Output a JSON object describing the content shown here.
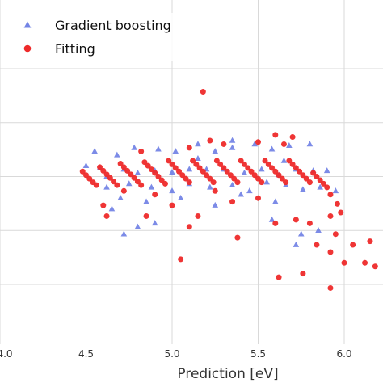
{
  "chart_data": {
    "type": "scatter",
    "xlabel": "Prediction [eV]",
    "ylabel": "",
    "title": "",
    "xlim": [
      4.0,
      6.2
    ],
    "ylim": [
      2.5,
      6.2
    ],
    "x_ticks": [
      4.0,
      4.5,
      5.0,
      5.5,
      6.0
    ],
    "x_tick_labels": [
      "4.0",
      "4.5",
      "5.0",
      "5.5",
      "6.0"
    ],
    "y_gridlines": [
      3.0,
      3.75,
      4.5,
      5.25,
      6.0
    ],
    "grid": true,
    "legend": {
      "placement": "top-left"
    },
    "series": [
      {
        "name": "Gradient boosting",
        "marker": "triangle",
        "color": "#5b6ee1",
        "points": [
          [
            4.5,
            4.65
          ],
          [
            4.58,
            4.62
          ],
          [
            4.62,
            4.5
          ],
          [
            4.72,
            4.6
          ],
          [
            4.8,
            4.55
          ],
          [
            4.9,
            4.58
          ],
          [
            5.0,
            4.56
          ],
          [
            5.1,
            4.6
          ],
          [
            5.2,
            4.6
          ],
          [
            5.3,
            4.6
          ],
          [
            5.42,
            4.55
          ],
          [
            5.52,
            4.6
          ],
          [
            5.62,
            4.52
          ],
          [
            5.72,
            4.6
          ],
          [
            5.82,
            4.58
          ],
          [
            5.9,
            4.58
          ],
          [
            4.55,
            4.85
          ],
          [
            4.68,
            4.8
          ],
          [
            4.78,
            4.9
          ],
          [
            4.92,
            4.88
          ],
          [
            5.02,
            4.85
          ],
          [
            5.15,
            4.95
          ],
          [
            5.25,
            4.85
          ],
          [
            5.35,
            4.9
          ],
          [
            5.48,
            4.95
          ],
          [
            5.58,
            4.88
          ],
          [
            5.68,
            4.93
          ],
          [
            5.8,
            4.95
          ],
          [
            4.62,
            4.35
          ],
          [
            4.75,
            4.4
          ],
          [
            4.88,
            4.35
          ],
          [
            5.0,
            4.3
          ],
          [
            5.1,
            4.4
          ],
          [
            5.22,
            4.35
          ],
          [
            5.35,
            4.38
          ],
          [
            5.45,
            4.3
          ],
          [
            5.55,
            4.42
          ],
          [
            5.66,
            4.38
          ],
          [
            5.76,
            4.32
          ],
          [
            5.86,
            4.35
          ],
          [
            5.95,
            4.3
          ],
          [
            4.7,
            4.2
          ],
          [
            4.85,
            4.15
          ],
          [
            5.05,
            4.2
          ],
          [
            5.25,
            4.1
          ],
          [
            5.4,
            4.25
          ],
          [
            5.6,
            4.15
          ],
          [
            4.8,
            3.8
          ],
          [
            4.65,
            4.05
          ],
          [
            4.9,
            3.85
          ],
          [
            5.58,
            3.9
          ],
          [
            5.75,
            3.7
          ],
          [
            5.85,
            3.75
          ],
          [
            5.72,
            3.55
          ],
          [
            4.72,
            3.7
          ],
          [
            5.35,
            5.0
          ],
          [
            5.15,
            4.75
          ],
          [
            5.65,
            4.72
          ]
        ]
      },
      {
        "name": "Fitting",
        "marker": "circle",
        "color": "#ee2a2a",
        "points": [
          [
            4.48,
            4.57
          ],
          [
            4.5,
            4.52
          ],
          [
            4.52,
            4.47
          ],
          [
            4.54,
            4.42
          ],
          [
            4.56,
            4.38
          ],
          [
            4.58,
            4.63
          ],
          [
            4.6,
            4.58
          ],
          [
            4.62,
            4.53
          ],
          [
            4.64,
            4.48
          ],
          [
            4.66,
            4.43
          ],
          [
            4.68,
            4.38
          ],
          [
            4.7,
            4.68
          ],
          [
            4.72,
            4.63
          ],
          [
            4.74,
            4.58
          ],
          [
            4.76,
            4.53
          ],
          [
            4.78,
            4.48
          ],
          [
            4.8,
            4.43
          ],
          [
            4.82,
            4.38
          ],
          [
            4.84,
            4.7
          ],
          [
            4.86,
            4.65
          ],
          [
            4.88,
            4.6
          ],
          [
            4.9,
            4.55
          ],
          [
            4.92,
            4.5
          ],
          [
            4.94,
            4.45
          ],
          [
            4.96,
            4.4
          ],
          [
            4.98,
            4.72
          ],
          [
            5.0,
            4.67
          ],
          [
            5.02,
            4.62
          ],
          [
            5.04,
            4.57
          ],
          [
            5.06,
            4.52
          ],
          [
            5.08,
            4.47
          ],
          [
            5.1,
            4.42
          ],
          [
            5.12,
            4.72
          ],
          [
            5.14,
            4.67
          ],
          [
            5.16,
            4.62
          ],
          [
            5.18,
            4.57
          ],
          [
            5.2,
            4.52
          ],
          [
            5.22,
            4.47
          ],
          [
            5.24,
            4.42
          ],
          [
            5.26,
            4.72
          ],
          [
            5.28,
            4.67
          ],
          [
            5.3,
            4.62
          ],
          [
            5.32,
            4.57
          ],
          [
            5.34,
            4.52
          ],
          [
            5.36,
            4.47
          ],
          [
            5.38,
            4.42
          ],
          [
            5.4,
            4.72
          ],
          [
            5.42,
            4.67
          ],
          [
            5.44,
            4.62
          ],
          [
            5.46,
            4.57
          ],
          [
            5.48,
            4.52
          ],
          [
            5.5,
            4.47
          ],
          [
            5.52,
            4.42
          ],
          [
            5.54,
            4.72
          ],
          [
            5.56,
            4.67
          ],
          [
            5.58,
            4.62
          ],
          [
            5.6,
            4.57
          ],
          [
            5.62,
            4.52
          ],
          [
            5.64,
            4.47
          ],
          [
            5.66,
            4.42
          ],
          [
            5.68,
            4.72
          ],
          [
            5.7,
            4.67
          ],
          [
            5.72,
            4.62
          ],
          [
            5.74,
            4.57
          ],
          [
            5.76,
            4.52
          ],
          [
            5.78,
            4.47
          ],
          [
            5.8,
            4.42
          ],
          [
            5.82,
            4.55
          ],
          [
            5.84,
            4.5
          ],
          [
            5.86,
            4.45
          ],
          [
            5.88,
            4.4
          ],
          [
            5.9,
            4.35
          ],
          [
            5.92,
            4.25
          ],
          [
            5.96,
            4.12
          ],
          [
            4.6,
            4.1
          ],
          [
            4.9,
            4.25
          ],
          [
            5.0,
            4.1
          ],
          [
            5.25,
            4.3
          ],
          [
            5.5,
            4.2
          ],
          [
            5.35,
            4.15
          ],
          [
            4.72,
            4.3
          ],
          [
            5.1,
            4.9
          ],
          [
            5.3,
            4.95
          ],
          [
            5.5,
            4.98
          ],
          [
            5.6,
            5.08
          ],
          [
            5.65,
            4.95
          ],
          [
            5.7,
            5.05
          ],
          [
            5.22,
            5.0
          ],
          [
            4.82,
            4.85
          ],
          [
            5.18,
            5.68
          ],
          [
            4.85,
            3.95
          ],
          [
            5.1,
            3.8
          ],
          [
            5.15,
            3.95
          ],
          [
            5.38,
            3.65
          ],
          [
            5.6,
            3.85
          ],
          [
            5.72,
            3.9
          ],
          [
            5.8,
            3.85
          ],
          [
            5.92,
            3.95
          ],
          [
            5.98,
            4.0
          ],
          [
            5.84,
            3.55
          ],
          [
            5.92,
            3.45
          ],
          [
            5.95,
            3.7
          ],
          [
            6.05,
            3.55
          ],
          [
            6.15,
            3.6
          ],
          [
            5.05,
            3.35
          ],
          [
            5.62,
            3.1
          ],
          [
            5.76,
            3.15
          ],
          [
            5.92,
            2.95
          ],
          [
            6.0,
            3.3
          ],
          [
            6.12,
            3.3
          ],
          [
            6.18,
            3.25
          ],
          [
            4.62,
            3.95
          ]
        ]
      }
    ]
  }
}
